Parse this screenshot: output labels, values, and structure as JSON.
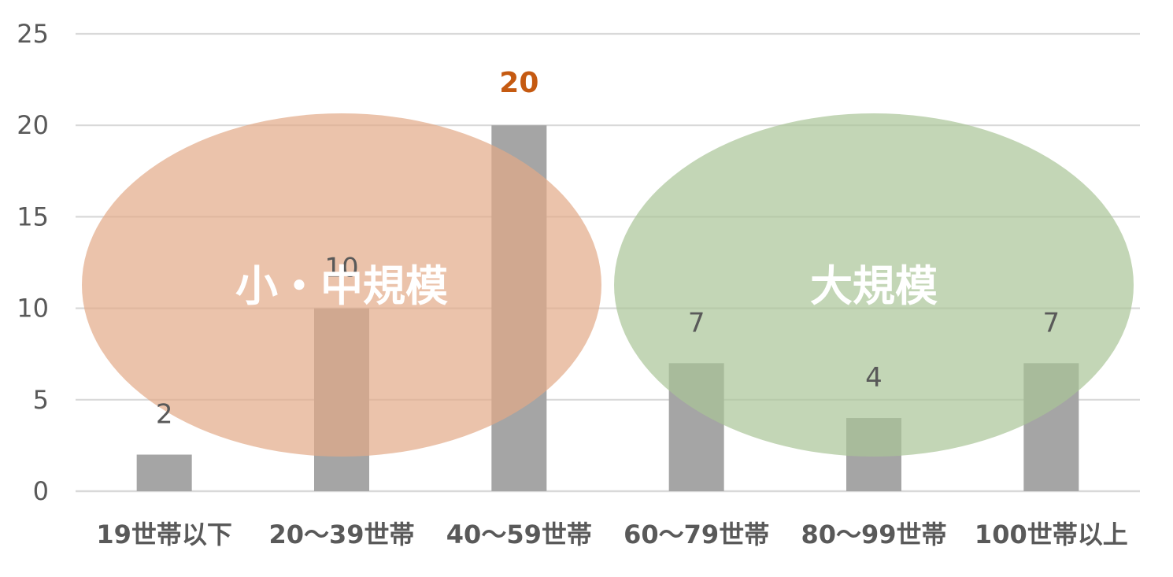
{
  "chart_data": {
    "type": "bar",
    "categories": [
      "19世帯以下",
      "20～39世帯",
      "40～59世帯",
      "60～79世帯",
      "80～99世帯",
      "100世帯以上"
    ],
    "values": [
      2,
      10,
      20,
      7,
      4,
      7
    ],
    "ylim": [
      0,
      25
    ],
    "yticks": [
      0,
      5,
      10,
      15,
      20,
      25
    ],
    "grid": true,
    "highlight_index": 2,
    "colors": {
      "bar": "#a5a5a5",
      "highlight_label": "#c55a11",
      "small_medium_group": "#e2a987",
      "large_group": "#a9c497"
    },
    "annotations": [
      {
        "label": "小・中規模",
        "categories_from": 0,
        "categories_to": 2,
        "color": "#e2a987"
      },
      {
        "label": "大規模",
        "categories_from": 3,
        "categories_to": 5,
        "color": "#a9c497"
      }
    ]
  }
}
